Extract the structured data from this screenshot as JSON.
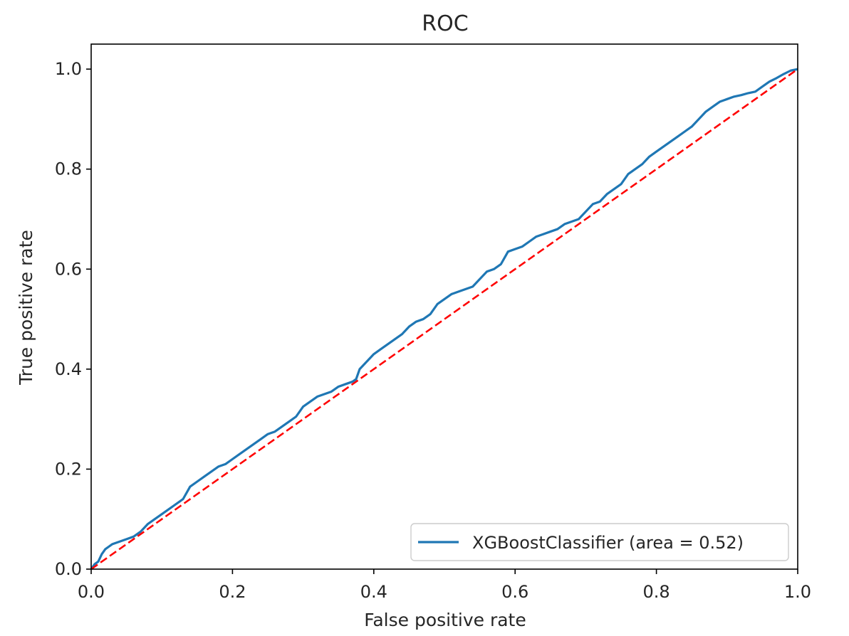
{
  "chart_data": {
    "type": "line",
    "title": "ROC",
    "xlabel": "False positive rate",
    "ylabel": "True positive rate",
    "xlim": [
      0.0,
      1.0
    ],
    "ylim": [
      0.0,
      1.05
    ],
    "xticks": [
      0.0,
      0.2,
      0.4,
      0.6,
      0.8,
      1.0
    ],
    "yticks": [
      0.0,
      0.2,
      0.4,
      0.6,
      0.8,
      1.0
    ],
    "xtick_labels": [
      "0.0",
      "0.2",
      "0.4",
      "0.6",
      "0.8",
      "1.0"
    ],
    "ytick_labels": [
      "0.0",
      "0.2",
      "0.4",
      "0.6",
      "0.8",
      "1.0"
    ],
    "grid": false,
    "legend": {
      "placement": "lower-right"
    },
    "series": [
      {
        "name": "XGBoostClassifier (area = 0.52)",
        "color": "#1f77b4",
        "style": "solid",
        "x": [
          0.0,
          0.005,
          0.01,
          0.015,
          0.02,
          0.025,
          0.03,
          0.04,
          0.05,
          0.06,
          0.07,
          0.08,
          0.09,
          0.1,
          0.11,
          0.12,
          0.13,
          0.14,
          0.15,
          0.16,
          0.17,
          0.18,
          0.19,
          0.2,
          0.21,
          0.22,
          0.23,
          0.24,
          0.25,
          0.26,
          0.27,
          0.28,
          0.29,
          0.3,
          0.31,
          0.32,
          0.33,
          0.34,
          0.35,
          0.36,
          0.37,
          0.375,
          0.38,
          0.39,
          0.4,
          0.41,
          0.42,
          0.43,
          0.44,
          0.45,
          0.46,
          0.47,
          0.48,
          0.49,
          0.5,
          0.51,
          0.52,
          0.53,
          0.54,
          0.55,
          0.56,
          0.57,
          0.58,
          0.59,
          0.6,
          0.61,
          0.62,
          0.63,
          0.64,
          0.65,
          0.66,
          0.67,
          0.68,
          0.69,
          0.7,
          0.71,
          0.72,
          0.73,
          0.74,
          0.75,
          0.76,
          0.77,
          0.78,
          0.79,
          0.8,
          0.81,
          0.82,
          0.83,
          0.84,
          0.85,
          0.86,
          0.87,
          0.88,
          0.89,
          0.9,
          0.91,
          0.92,
          0.93,
          0.94,
          0.95,
          0.96,
          0.97,
          0.98,
          0.99,
          1.0
        ],
        "y": [
          0.0,
          0.01,
          0.015,
          0.03,
          0.04,
          0.045,
          0.05,
          0.055,
          0.06,
          0.065,
          0.075,
          0.09,
          0.1,
          0.11,
          0.12,
          0.13,
          0.14,
          0.165,
          0.175,
          0.185,
          0.195,
          0.205,
          0.21,
          0.22,
          0.23,
          0.24,
          0.25,
          0.26,
          0.27,
          0.275,
          0.285,
          0.295,
          0.305,
          0.325,
          0.335,
          0.345,
          0.35,
          0.355,
          0.365,
          0.37,
          0.375,
          0.38,
          0.4,
          0.415,
          0.43,
          0.44,
          0.45,
          0.46,
          0.47,
          0.485,
          0.495,
          0.5,
          0.51,
          0.53,
          0.54,
          0.55,
          0.555,
          0.56,
          0.565,
          0.58,
          0.595,
          0.6,
          0.61,
          0.635,
          0.64,
          0.645,
          0.655,
          0.665,
          0.67,
          0.675,
          0.68,
          0.69,
          0.695,
          0.7,
          0.715,
          0.73,
          0.735,
          0.75,
          0.76,
          0.77,
          0.79,
          0.8,
          0.81,
          0.825,
          0.835,
          0.845,
          0.855,
          0.865,
          0.875,
          0.885,
          0.9,
          0.915,
          0.925,
          0.935,
          0.94,
          0.945,
          0.948,
          0.952,
          0.955,
          0.965,
          0.975,
          0.982,
          0.99,
          0.997,
          1.0
        ]
      },
      {
        "name": "",
        "color": "#ff0000",
        "style": "dashed",
        "x": [
          0.0,
          1.0
        ],
        "y": [
          0.0,
          1.0
        ]
      }
    ]
  }
}
